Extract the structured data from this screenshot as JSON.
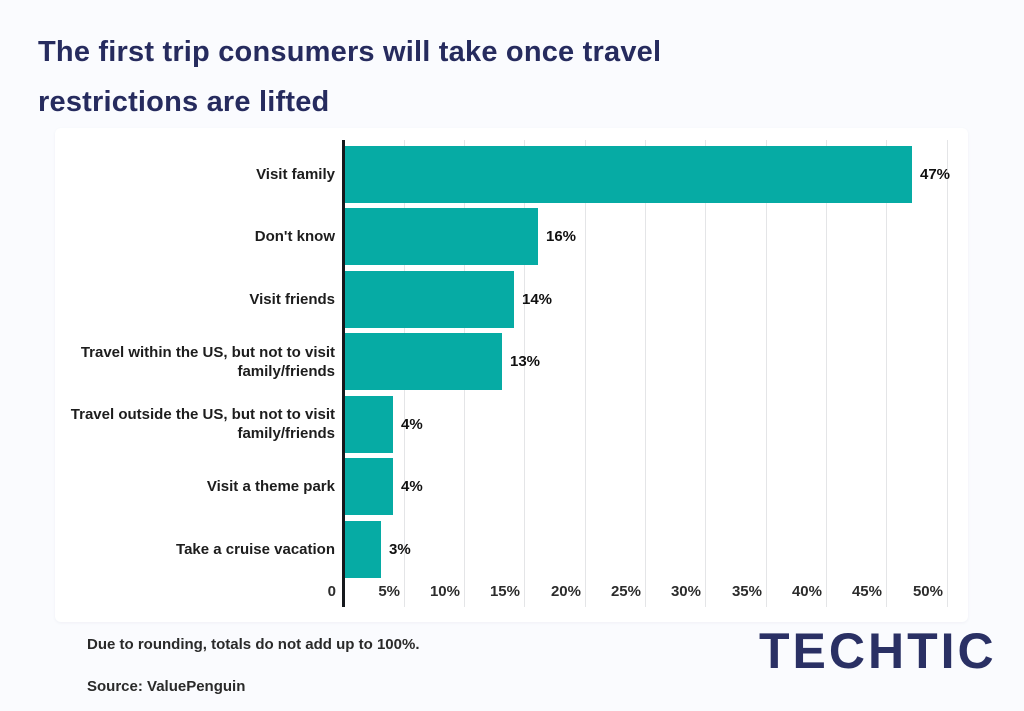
{
  "page": {
    "title_line1": "The first trip consumers will take once travel",
    "title_line2": "restrictions are lifted"
  },
  "chart_data": {
    "type": "bar",
    "orientation": "horizontal",
    "title": "The first trip consumers will take once travel restrictions are lifted",
    "categories": [
      "Visit family",
      "Don't know",
      "Visit friends",
      "Travel within the US, but not to visit family/friends",
      "Travel outside the US, but not to visit family/friends",
      "Visit a theme park",
      "Take a cruise vacation"
    ],
    "category_lines": [
      [
        "Visit family"
      ],
      [
        "Don't know"
      ],
      [
        "Visit friends"
      ],
      [
        "Travel within the US, but not to visit",
        "family/friends"
      ],
      [
        "Travel outside the US, but not to visit",
        "family/friends"
      ],
      [
        "Visit a theme park"
      ],
      [
        "Take a cruise vacation"
      ]
    ],
    "values": [
      47,
      16,
      14,
      13,
      4,
      4,
      3
    ],
    "value_labels": [
      "47%",
      "16%",
      "14%",
      "13%",
      "4%",
      "4%",
      "3%"
    ],
    "x_ticks": [
      "0",
      "5%",
      "10%",
      "15%",
      "20%",
      "25%",
      "30%",
      "35%",
      "40%",
      "45%",
      "50%"
    ],
    "x_tick_values": [
      0,
      5,
      10,
      15,
      20,
      25,
      30,
      35,
      40,
      45,
      50
    ],
    "xlim": [
      0,
      50
    ],
    "grid": true,
    "legend": false,
    "bar_color": "#06ABA4",
    "gridline_color": "#E4E5E7",
    "axis_color": "#15181C"
  },
  "footer": {
    "note": "Due to rounding, totals do not add up to 100%.",
    "source": "Source: ValuePenguin",
    "logo": "TECHTIC"
  },
  "colors": {
    "background": "#FAFBFE",
    "card": "#FFFFFF",
    "title": "#262B5E",
    "bar": "#06ABA4",
    "logo": "#2A3064"
  }
}
